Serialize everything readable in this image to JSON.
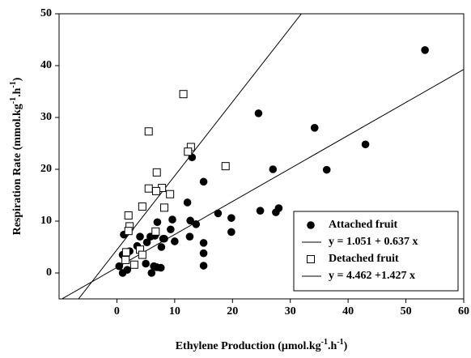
{
  "chart_data": {
    "type": "scatter",
    "xlabel": [
      "Ethylene Production (μmol.kg",
      "-1",
      ".h",
      "-1",
      ")"
    ],
    "ylabel": [
      "Respiration Rate (mmol.kg",
      "-1",
      ".h",
      "-1",
      ")"
    ],
    "xlim": [
      -10,
      60
    ],
    "xticks": [
      0,
      10,
      20,
      30,
      40,
      50,
      60
    ],
    "ylim": [
      -5,
      50
    ],
    "yticks": [
      0,
      10,
      20,
      30,
      40,
      50
    ],
    "legend": "lower right",
    "series": [
      {
        "name": "Attached fruit",
        "marker": "filled",
        "color": "#000000",
        "x": [
          53.3,
          43,
          36.3,
          34.2,
          28,
          27.5,
          27,
          24.5,
          24.8,
          19.8,
          19.8,
          17.5,
          15,
          15,
          15,
          15,
          13,
          13.7,
          12.7,
          12.6,
          12.2,
          10,
          9.6,
          9.3,
          8,
          8.2,
          7.7,
          7.6,
          7,
          6.6,
          6.4,
          6,
          5.8,
          5,
          5.2,
          4,
          3.5,
          2.2,
          1.8,
          1,
          1.2,
          0.4,
          1,
          6.9
        ],
        "values": [
          43,
          24.8,
          19.9,
          28,
          12.5,
          11.7,
          20,
          30.8,
          12,
          10.6,
          7.9,
          11.5,
          17.6,
          5.8,
          3.8,
          1.4,
          22.3,
          9.4,
          10.1,
          7,
          13.6,
          6.1,
          10.3,
          8.4,
          6.6,
          6.6,
          5,
          1,
          9.8,
          7.2,
          1.3,
          0,
          7,
          1.8,
          5.9,
          7,
          5.2,
          4.2,
          0.6,
          0,
          7.4,
          1.3,
          3.5,
          1.1
        ],
        "fit": {
          "intercept": 1.051,
          "slope": 0.637,
          "label": "y = 1.051 + 0.637 x"
        }
      },
      {
        "name": "Detached fruit",
        "marker": "open",
        "color": "#000000",
        "x": [
          11.5,
          5.5,
          12.8,
          12.3,
          18.8,
          6.9,
          5.5,
          7.8,
          6.8,
          9.2,
          4.4,
          8.2,
          2,
          2.2,
          2,
          6.7,
          4,
          4.4,
          1.6,
          1.5,
          3
        ],
        "values": [
          34.5,
          27.3,
          24.3,
          23.4,
          20.6,
          19.4,
          16.3,
          16.4,
          15.8,
          15.2,
          12.8,
          12.6,
          11.1,
          9,
          8.1,
          8,
          4.5,
          3.5,
          4,
          2.5,
          1.6
        ],
        "fit": {
          "intercept": 4.462,
          "slope": 1.427,
          "label": "y = 4.462 +1.427 x"
        }
      }
    ]
  }
}
